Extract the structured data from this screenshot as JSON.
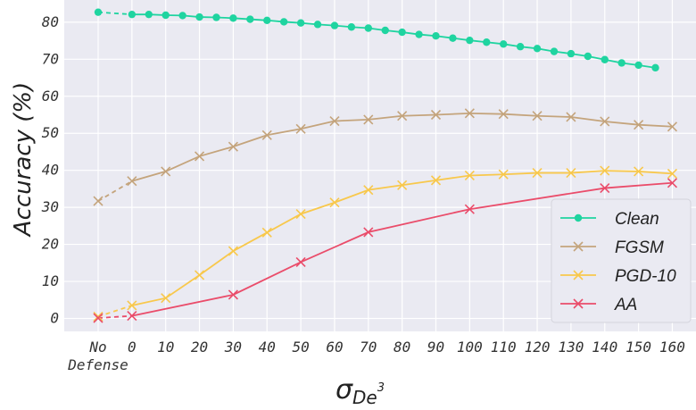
{
  "chart_data": {
    "type": "line",
    "ylabel": "Accuracy (%)",
    "xlabel": {
      "main": "σ",
      "subscript": "De",
      "superscript": "3"
    },
    "categories": [
      "No\nDefense",
      "0",
      "10",
      "20",
      "30",
      "40",
      "50",
      "60",
      "70",
      "80",
      "90",
      "100",
      "110",
      "120",
      "130",
      "140",
      "150",
      "160"
    ],
    "ylim": [
      -3.5,
      86
    ],
    "yticks": [
      0,
      10,
      20,
      30,
      40,
      50,
      60,
      70,
      80
    ],
    "grid": true,
    "legend_position": "bottom-right",
    "series": [
      {
        "name": "Clean",
        "color": "#1fd4a0",
        "marker": "circle",
        "values": [
          82.7,
          82.1,
          82.1,
          81.9,
          81.8,
          81.4,
          81.3,
          81.1,
          80.8,
          80.5,
          80.1,
          79.8,
          79.4,
          79.1,
          78.7,
          78.4,
          77.8,
          77.3,
          76.7,
          76.3,
          75.7,
          75.1,
          74.6,
          74.1,
          73.4,
          72.9,
          72.1,
          71.5,
          70.8,
          69.9,
          69.0,
          68.4,
          67.7
        ],
        "x": [
          -1,
          0,
          0.5,
          1,
          1.5,
          2,
          2.5,
          3,
          3.5,
          4,
          4.5,
          5,
          5.5,
          6,
          6.5,
          7,
          7.5,
          8,
          8.5,
          9,
          9.5,
          10,
          10.5,
          11,
          11.5,
          12,
          12.5,
          13,
          13.5,
          14,
          14.5,
          15,
          15.5
        ]
      },
      {
        "name": "FGSM",
        "color": "#c4a47c",
        "marker": "x",
        "x": [
          -1,
          0,
          1,
          2,
          3,
          4,
          5,
          6,
          7,
          8,
          9,
          10,
          11,
          12,
          13,
          14,
          15,
          16
        ],
        "values": [
          31.7,
          37.1,
          39.7,
          43.8,
          46.4,
          49.5,
          51.2,
          53.3,
          53.7,
          54.7,
          55.0,
          55.4,
          55.2,
          54.7,
          54.4,
          53.2,
          52.3,
          51.8
        ]
      },
      {
        "name": "PGD-10",
        "color": "#f8c84c",
        "marker": "x",
        "x": [
          -1,
          0,
          1,
          2,
          3,
          4,
          5,
          6,
          7,
          8,
          9,
          10,
          11,
          12,
          13,
          14,
          15,
          16
        ],
        "values": [
          0.5,
          3.5,
          5.5,
          11.7,
          18.2,
          23.2,
          28.2,
          31.3,
          34.7,
          36.0,
          37.3,
          38.6,
          38.9,
          39.3,
          39.3,
          39.9,
          39.7,
          39.1
        ]
      },
      {
        "name": "AA",
        "color": "#ea4c6a",
        "marker": "x",
        "x": [
          -1,
          0,
          3,
          5,
          7,
          10,
          14,
          16
        ],
        "values": [
          0.1,
          0.7,
          6.4,
          15.2,
          23.3,
          29.5,
          35.2,
          36.6
        ]
      }
    ]
  }
}
